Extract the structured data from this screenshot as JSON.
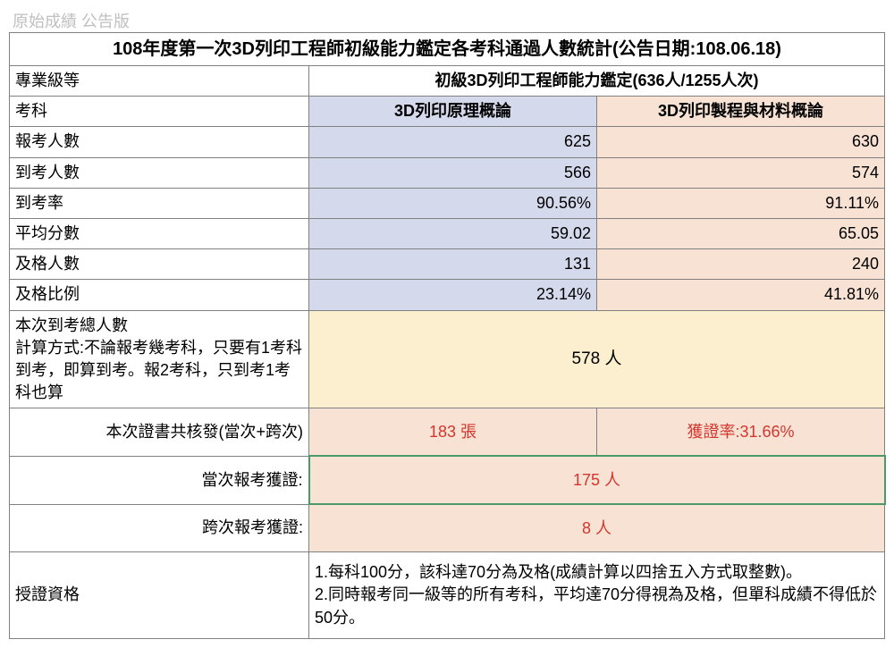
{
  "fadedTop": "原始成績 公告版",
  "title": "108年度第一次3D列印工程師初級能力鑑定各考科通過人數統計(公告日期:108.06.18)",
  "level": {
    "label": "專業級等",
    "value": "初級3D列印工程師能力鑑定(636人/1255人次)"
  },
  "subjectHeader": "考科",
  "subject1": "3D列印原理概論",
  "subject2": "3D列印製程與材料概論",
  "rows": [
    {
      "label": "報考人數",
      "v1": "625",
      "v2": "630"
    },
    {
      "label": "到考人數",
      "v1": "566",
      "v2": "574"
    },
    {
      "label": "到考率",
      "v1": "90.56%",
      "v2": "91.11%"
    },
    {
      "label": "平均分數",
      "v1": "59.02",
      "v2": "65.05"
    },
    {
      "label": "及格人數",
      "v1": "131",
      "v2": "240"
    },
    {
      "label": "及格比例",
      "v1": "23.14%",
      "v2": "41.81%"
    }
  ],
  "totalAttend": {
    "label": "本次到考總人數\n計算方式:不論報考幾考科，只要有1考科到考，即算到考。報2考科，只到考1考科也算",
    "value": "578 人"
  },
  "certIssued": {
    "label": "本次證書共核發(當次+跨次)",
    "value": "183 張",
    "rate": "獲證率:31.66%"
  },
  "currentCert": {
    "label": "當次報考獲證:",
    "value": "175 人"
  },
  "crossCert": {
    "label": "跨次報考獲證:",
    "value": "8 人"
  },
  "qualification": {
    "label": "授證資格",
    "text": "1.每科100分，該科達70分為及格(成績計算以四捨五入方式取整數)。\n2.同時報考同一級等的所有考科，平均達70分得視為及格，但單科成績不得低於50分。"
  },
  "colors": {
    "blue": "#d5d9ec",
    "orange": "#f8e2d4",
    "yellow": "#fbefcf",
    "red": "#d4362e",
    "greenBorder": "#4a9a66",
    "gridBorder": "#808080"
  }
}
